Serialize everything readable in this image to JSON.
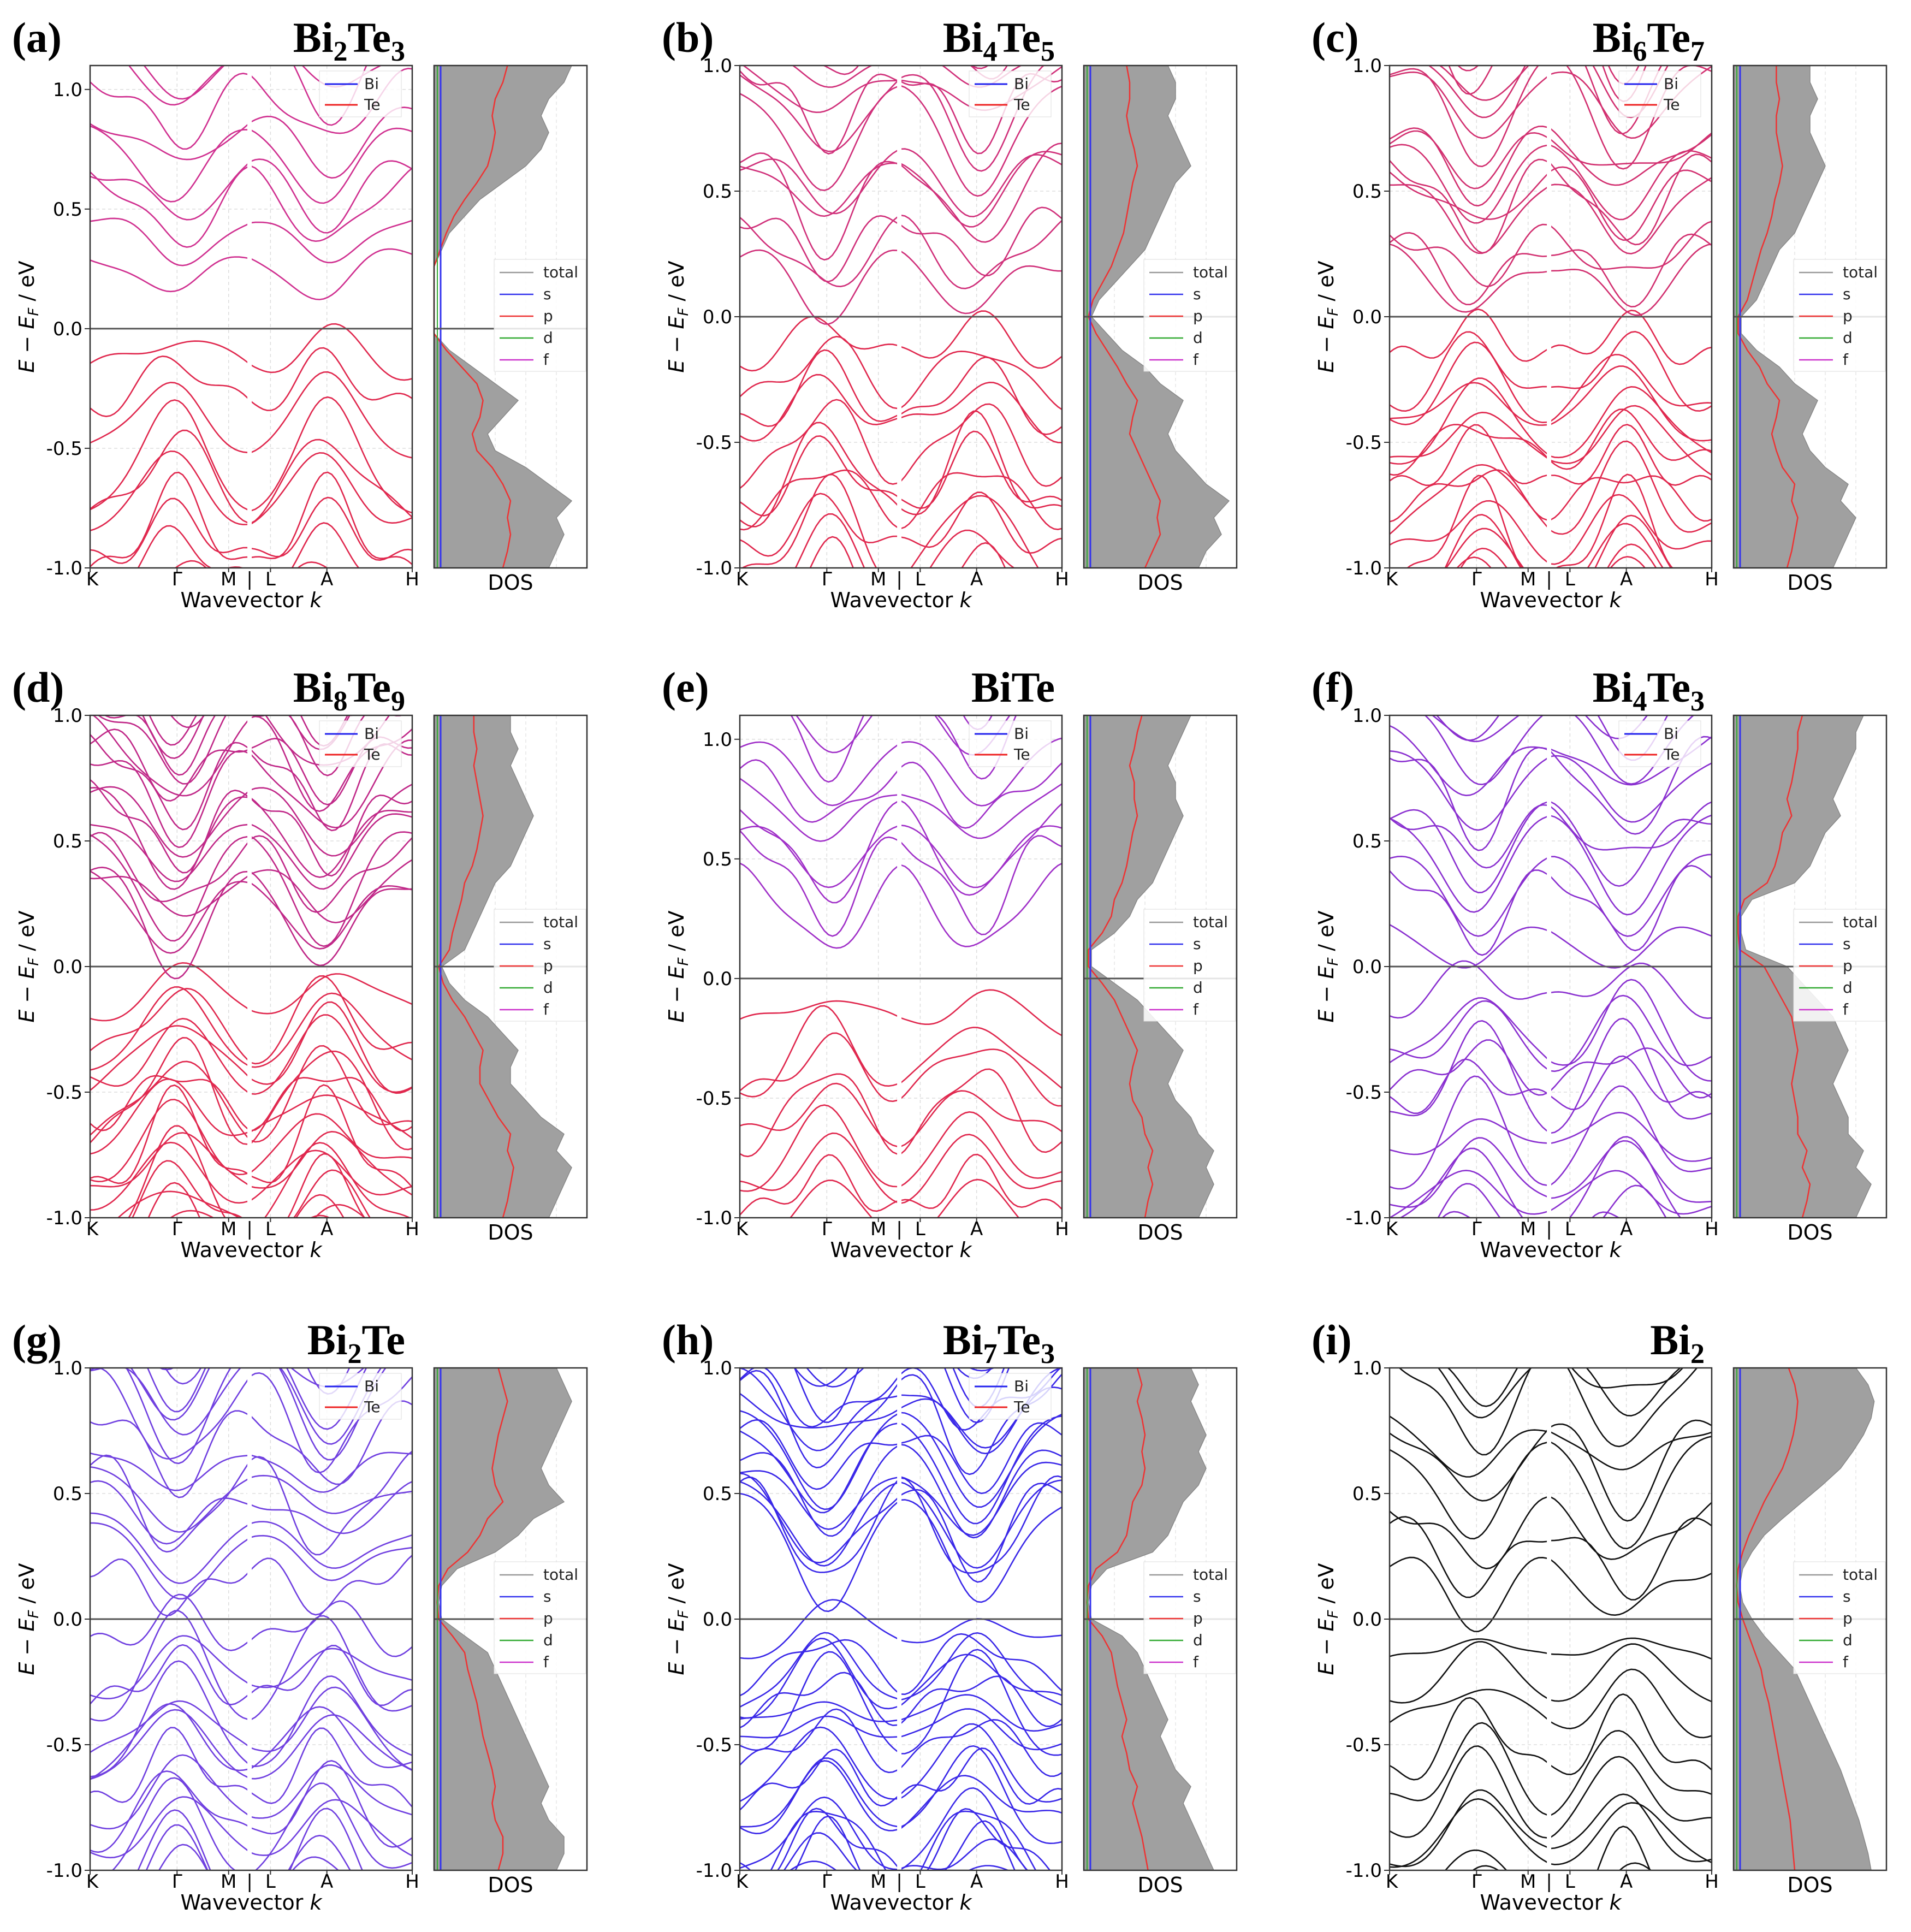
{
  "figure": {
    "common": {
      "band_xlabel": "Wavevector k",
      "band_ylabel": "E − E_F / eV",
      "dos_xlabel": "DOS",
      "kpoints": [
        "K",
        "Γ",
        "M",
        "|",
        "L",
        "A",
        "H"
      ],
      "y_ticks": [
        "-1.0",
        "-0.5",
        "0.0",
        "0.5",
        "1.0"
      ],
      "band_legend": [
        "Bi",
        "Te"
      ],
      "dos_legend": [
        "total",
        "s",
        "p",
        "d",
        "f"
      ]
    },
    "colors": {
      "Bi": "#2222ee",
      "Te": "#ee2222",
      "total": "#999999",
      "s": "#3333ee",
      "p": "#ee3333",
      "d": "#33aa33",
      "f": "#cc33cc"
    }
  },
  "chart_data": [
    {
      "type": "line",
      "panel": "(a)",
      "formula": {
        "main": "Bi",
        "n1": "2",
        "el2": "Te",
        "n2": "3"
      },
      "ylim": [
        -1.0,
        1.1
      ],
      "y_ticks": [
        -1.0,
        -0.5,
        0.0,
        0.5,
        1.0
      ],
      "band_tint": "#d03090",
      "gap": [
        -0.02,
        0.12
      ],
      "dos_total": [
        0.75,
        0.8,
        0.85,
        0.8,
        0.9,
        0.75,
        0.6,
        0.4,
        0.35,
        0.45,
        0.55,
        0.4,
        0.25,
        0.1,
        0,
        0,
        0,
        0,
        0,
        0.05,
        0.1,
        0.2,
        0.3,
        0.45,
        0.6,
        0.7,
        0.75,
        0.7,
        0.75,
        0.85,
        0.9
      ],
      "dos_p": [
        0.45,
        0.48,
        0.5,
        0.48,
        0.5,
        0.45,
        0.38,
        0.28,
        0.25,
        0.3,
        0.32,
        0.28,
        0.18,
        0.08,
        0,
        0,
        0,
        0,
        0,
        0.04,
        0.08,
        0.13,
        0.2,
        0.28,
        0.35,
        0.38,
        0.4,
        0.38,
        0.4,
        0.45,
        0.48
      ],
      "bi_legend": true,
      "dos_legend": true
    },
    {
      "type": "line",
      "panel": "(b)",
      "formula": {
        "main": "Bi",
        "n1": "4",
        "el2": "Te",
        "n2": "5"
      },
      "ylim": [
        -1.0,
        1.0
      ],
      "y_ticks": [
        -1.0,
        -0.5,
        0.0,
        0.5,
        1.0
      ],
      "band_tint": "#d0307a",
      "gap": [
        -0.02,
        0.02
      ],
      "dos_total": [
        0.75,
        0.8,
        0.9,
        0.85,
        0.95,
        0.8,
        0.7,
        0.6,
        0.55,
        0.6,
        0.65,
        0.5,
        0.4,
        0.25,
        0.15,
        0.05,
        0.1,
        0.2,
        0.3,
        0.4,
        0.45,
        0.5,
        0.55,
        0.6,
        0.7,
        0.65,
        0.6,
        0.55,
        0.6,
        0.6,
        0.55
      ],
      "dos_p": [
        0.4,
        0.45,
        0.5,
        0.48,
        0.5,
        0.45,
        0.4,
        0.35,
        0.3,
        0.32,
        0.35,
        0.28,
        0.22,
        0.15,
        0.08,
        0.03,
        0.06,
        0.12,
        0.18,
        0.22,
        0.26,
        0.28,
        0.3,
        0.32,
        0.35,
        0.33,
        0.3,
        0.28,
        0.3,
        0.3,
        0.28
      ],
      "bi_legend": true,
      "dos_legend": true
    },
    {
      "type": "line",
      "panel": "(c)",
      "formula": {
        "main": "Bi",
        "n1": "6",
        "el2": "Te",
        "n2": "7"
      },
      "ylim": [
        -1.0,
        1.0
      ],
      "y_ticks": [
        -1.0,
        -0.5,
        0.0,
        0.5,
        1.0
      ],
      "band_tint": "#d23070",
      "gap": [
        -0.02,
        0.01
      ],
      "dos_total": [
        0.65,
        0.7,
        0.75,
        0.8,
        0.7,
        0.75,
        0.6,
        0.5,
        0.45,
        0.5,
        0.55,
        0.4,
        0.3,
        0.15,
        0.05,
        0.05,
        0.15,
        0.2,
        0.25,
        0.3,
        0.4,
        0.45,
        0.5,
        0.55,
        0.6,
        0.55,
        0.5,
        0.5,
        0.55,
        0.5,
        0.5
      ],
      "dos_p": [
        0.35,
        0.38,
        0.4,
        0.42,
        0.38,
        0.4,
        0.32,
        0.28,
        0.25,
        0.28,
        0.3,
        0.22,
        0.17,
        0.09,
        0.03,
        0.03,
        0.09,
        0.12,
        0.15,
        0.18,
        0.22,
        0.25,
        0.27,
        0.3,
        0.32,
        0.3,
        0.28,
        0.28,
        0.3,
        0.28,
        0.28
      ],
      "bi_legend": true,
      "dos_legend": true
    },
    {
      "type": "line",
      "panel": "(d)",
      "formula": {
        "main": "Bi",
        "n1": "8",
        "el2": "Te",
        "n2": "9"
      },
      "ylim": [
        -1.0,
        1.0
      ],
      "y_ticks": [
        -1.0,
        -0.5,
        0.0,
        0.5,
        1.0
      ],
      "band_tint": "#c02888",
      "gap": [
        -0.02,
        0.0
      ],
      "dos_total": [
        0.75,
        0.8,
        0.85,
        0.9,
        0.8,
        0.85,
        0.7,
        0.6,
        0.5,
        0.5,
        0.55,
        0.45,
        0.35,
        0.2,
        0.1,
        0.05,
        0.2,
        0.25,
        0.3,
        0.35,
        0.4,
        0.5,
        0.55,
        0.6,
        0.65,
        0.6,
        0.55,
        0.5,
        0.55,
        0.5,
        0.5
      ],
      "dos_p": [
        0.45,
        0.48,
        0.5,
        0.52,
        0.48,
        0.5,
        0.42,
        0.36,
        0.3,
        0.3,
        0.32,
        0.26,
        0.2,
        0.12,
        0.06,
        0.03,
        0.1,
        0.12,
        0.15,
        0.18,
        0.2,
        0.25,
        0.28,
        0.3,
        0.32,
        0.3,
        0.28,
        0.26,
        0.28,
        0.26,
        0.26
      ],
      "bi_legend": true,
      "dos_legend": true
    },
    {
      "type": "line",
      "panel": "(e)",
      "formula": {
        "main": "BiTe",
        "n1": "",
        "el2": "",
        "n2": ""
      },
      "ylim": [
        -1.0,
        1.1
      ],
      "y_ticks": [
        -1.0,
        -0.5,
        0.0,
        0.5,
        1.0
      ],
      "band_tint": "#a030c8",
      "gap": [
        -0.05,
        0.1
      ],
      "dos_total": [
        0.75,
        0.8,
        0.85,
        0.8,
        0.85,
        0.75,
        0.7,
        0.6,
        0.55,
        0.6,
        0.65,
        0.55,
        0.45,
        0.35,
        0.2,
        0.05,
        0.05,
        0.2,
        0.3,
        0.35,
        0.45,
        0.5,
        0.55,
        0.6,
        0.65,
        0.6,
        0.6,
        0.55,
        0.6,
        0.65,
        0.7
      ],
      "dos_p": [
        0.4,
        0.42,
        0.45,
        0.42,
        0.45,
        0.4,
        0.38,
        0.32,
        0.3,
        0.32,
        0.35,
        0.3,
        0.25,
        0.2,
        0.12,
        0.03,
        0.03,
        0.12,
        0.18,
        0.2,
        0.25,
        0.28,
        0.3,
        0.32,
        0.35,
        0.33,
        0.33,
        0.3,
        0.33,
        0.35,
        0.38
      ],
      "bi_legend": true,
      "dos_legend": true
    },
    {
      "type": "line",
      "panel": "(f)",
      "formula": {
        "main": "Bi",
        "n1": "4",
        "el2": "Te",
        "n2": "3"
      },
      "ylim": [
        -1.0,
        1.0
      ],
      "y_ticks": [
        -1.0,
        -0.5,
        0.0,
        0.5,
        1.0
      ],
      "band_tint": "#8a30d0",
      "gap": [
        0.0,
        0.0
      ],
      "dos_total": [
        0.8,
        0.85,
        0.9,
        0.8,
        0.85,
        0.75,
        0.75,
        0.7,
        0.65,
        0.7,
        0.75,
        0.7,
        0.65,
        0.55,
        0.45,
        0.35,
        0.08,
        0.05,
        0.05,
        0.12,
        0.4,
        0.5,
        0.55,
        0.6,
        0.7,
        0.65,
        0.7,
        0.75,
        0.8,
        0.8,
        0.85
      ],
      "dos_p": [
        0.45,
        0.48,
        0.5,
        0.45,
        0.48,
        0.42,
        0.42,
        0.4,
        0.38,
        0.4,
        0.42,
        0.4,
        0.38,
        0.32,
        0.26,
        0.2,
        0.04,
        0.03,
        0.03,
        0.07,
        0.22,
        0.27,
        0.3,
        0.32,
        0.38,
        0.35,
        0.38,
        0.4,
        0.42,
        0.42,
        0.45
      ],
      "bi_legend": true,
      "dos_legend": true
    },
    {
      "type": "line",
      "panel": "(g)",
      "formula": {
        "main": "Bi",
        "n1": "2",
        "el2": "Te",
        "n2": ""
      },
      "ylim": [
        -1.0,
        1.0
      ],
      "y_ticks": [
        -1.0,
        -0.5,
        0.0,
        0.5,
        1.0
      ],
      "band_tint": "#7040e0",
      "gap": [
        0.05,
        0.05
      ],
      "dos_total": [
        0.8,
        0.85,
        0.85,
        0.75,
        0.7,
        0.75,
        0.7,
        0.65,
        0.6,
        0.55,
        0.5,
        0.45,
        0.4,
        0.35,
        0.2,
        0.05,
        0.03,
        0.05,
        0.15,
        0.4,
        0.55,
        0.65,
        0.85,
        0.75,
        0.7,
        0.75,
        0.8,
        0.85,
        0.9,
        0.85,
        0.8
      ],
      "dos_p": [
        0.42,
        0.45,
        0.45,
        0.4,
        0.38,
        0.4,
        0.38,
        0.35,
        0.32,
        0.3,
        0.28,
        0.25,
        0.22,
        0.2,
        0.12,
        0.03,
        0.02,
        0.03,
        0.09,
        0.22,
        0.3,
        0.35,
        0.45,
        0.4,
        0.38,
        0.4,
        0.42,
        0.45,
        0.48,
        0.45,
        0.42
      ],
      "bi_legend": true,
      "dos_legend": true
    },
    {
      "type": "line",
      "panel": "(h)",
      "formula": {
        "main": "Bi",
        "n1": "7",
        "el2": "Te",
        "n2": "3"
      },
      "ylim": [
        -1.0,
        1.0
      ],
      "y_ticks": [
        -1.0,
        -0.5,
        0.0,
        0.5,
        1.0
      ],
      "band_tint": "#3a28e8",
      "gap": [
        0.05,
        0.08
      ],
      "dos_total": [
        0.85,
        0.8,
        0.75,
        0.7,
        0.65,
        0.7,
        0.6,
        0.55,
        0.5,
        0.55,
        0.5,
        0.45,
        0.4,
        0.35,
        0.25,
        0.05,
        0.03,
        0.05,
        0.15,
        0.45,
        0.55,
        0.6,
        0.65,
        0.75,
        0.8,
        0.75,
        0.8,
        0.75,
        0.7,
        0.75,
        0.7
      ],
      "dos_p": [
        0.42,
        0.4,
        0.38,
        0.35,
        0.32,
        0.35,
        0.3,
        0.28,
        0.25,
        0.28,
        0.25,
        0.22,
        0.2,
        0.18,
        0.12,
        0.03,
        0.02,
        0.03,
        0.08,
        0.22,
        0.28,
        0.3,
        0.32,
        0.38,
        0.4,
        0.38,
        0.4,
        0.38,
        0.35,
        0.38,
        0.35
      ],
      "bi_legend": true,
      "dos_legend": true
    },
    {
      "type": "line",
      "panel": "(i)",
      "formula": {
        "main": "Bi",
        "n1": "2",
        "el2": "",
        "n2": ""
      },
      "ylim": [
        -1.0,
        1.0
      ],
      "y_ticks": [
        -1.0,
        -0.5,
        0.0,
        0.5,
        1.0
      ],
      "band_tint": "#111111",
      "gap": [
        -0.03,
        0.0
      ],
      "dos_total": [
        0.9,
        0.88,
        0.85,
        0.82,
        0.78,
        0.74,
        0.7,
        0.65,
        0.6,
        0.55,
        0.5,
        0.45,
        0.4,
        0.3,
        0.2,
        0.12,
        0.06,
        0.04,
        0.06,
        0.12,
        0.2,
        0.32,
        0.45,
        0.58,
        0.7,
        0.78,
        0.85,
        0.9,
        0.92,
        0.88,
        0.8
      ],
      "dos_p": [
        0.4,
        0.39,
        0.38,
        0.37,
        0.35,
        0.33,
        0.31,
        0.29,
        0.27,
        0.25,
        0.23,
        0.2,
        0.18,
        0.14,
        0.1,
        0.06,
        0.03,
        0.02,
        0.03,
        0.06,
        0.1,
        0.15,
        0.2,
        0.26,
        0.32,
        0.36,
        0.39,
        0.41,
        0.42,
        0.4,
        0.36
      ],
      "bi_legend": false,
      "dos_legend": true
    }
  ]
}
